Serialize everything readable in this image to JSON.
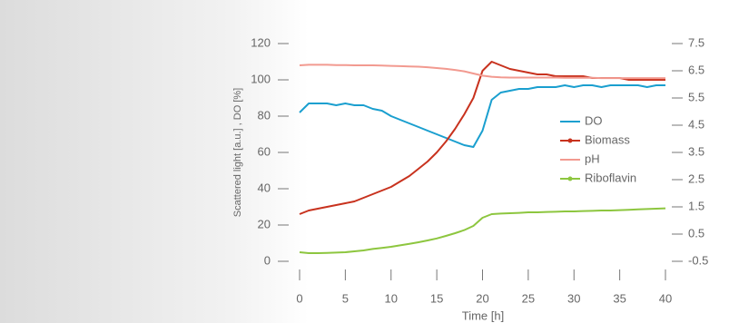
{
  "chart_data": {
    "type": "line",
    "xlabel": "Time [h]",
    "ylabel": "Scattered light [a.u.] , DO [%]",
    "x": [
      0,
      1,
      2,
      3,
      4,
      5,
      6,
      7,
      8,
      9,
      10,
      11,
      12,
      13,
      14,
      15,
      16,
      17,
      18,
      19,
      20,
      21,
      22,
      23,
      24,
      25,
      26,
      27,
      28,
      29,
      30,
      31,
      32,
      33,
      34,
      35,
      36,
      37,
      38,
      39,
      40
    ],
    "xlim": [
      0,
      40
    ],
    "xticks": [
      0,
      5,
      10,
      15,
      20,
      25,
      30,
      35,
      40
    ],
    "ylim": [
      0,
      120
    ],
    "yticks": [
      0,
      20,
      40,
      60,
      80,
      100,
      120
    ],
    "y2lim": [
      -0.5,
      7.5
    ],
    "y2ticks": [
      -0.5,
      0.5,
      1.5,
      2.5,
      3.5,
      4.5,
      5.5,
      6.5,
      7.5
    ],
    "legend": "right",
    "series": [
      {
        "name": "DO",
        "color": "#1a9fcf",
        "values": [
          82,
          87,
          87,
          87,
          86,
          87,
          86,
          86,
          84,
          83,
          80,
          78,
          76,
          74,
          72,
          70,
          68,
          66,
          64,
          63,
          72,
          89,
          93,
          94,
          95,
          95,
          96,
          96,
          96,
          97,
          96,
          97,
          97,
          96,
          97,
          97,
          97,
          97,
          96,
          97,
          97
        ]
      },
      {
        "name": "Biomass",
        "color": "#c8321e",
        "values": [
          26,
          28,
          29,
          30,
          31,
          32,
          33,
          35,
          37,
          39,
          41,
          44,
          47,
          51,
          55,
          60,
          66,
          73,
          81,
          90,
          105,
          110,
          108,
          106,
          105,
          104,
          103,
          103,
          102,
          102,
          102,
          102,
          101,
          101,
          101,
          101,
          100,
          100,
          100,
          100,
          100
        ]
      },
      {
        "name": "pH",
        "color": "#f29a90",
        "axis": "y2",
        "values": [
          6.7,
          6.72,
          6.72,
          6.72,
          6.71,
          6.71,
          6.7,
          6.7,
          6.7,
          6.69,
          6.68,
          6.67,
          6.66,
          6.65,
          6.63,
          6.6,
          6.57,
          6.53,
          6.48,
          6.4,
          6.32,
          6.28,
          6.26,
          6.25,
          6.25,
          6.25,
          6.25,
          6.25,
          6.25,
          6.24,
          6.24,
          6.24,
          6.24,
          6.23,
          6.23,
          6.23,
          6.23,
          6.23,
          6.23,
          6.23,
          6.23
        ]
      },
      {
        "name": "Riboflavin",
        "color": "#8dc63f",
        "values": [
          5,
          4.5,
          4.5,
          4.6,
          4.8,
          5,
          5.5,
          6,
          6.8,
          7.4,
          8,
          8.8,
          9.6,
          10.5,
          11.5,
          12.6,
          14,
          15.5,
          17.2,
          19.5,
          24,
          26,
          26.3,
          26.5,
          26.7,
          27,
          27,
          27.2,
          27.3,
          27.5,
          27.5,
          27.7,
          27.8,
          28,
          28,
          28.2,
          28.4,
          28.6,
          28.8,
          29,
          29.2
        ]
      }
    ]
  }
}
